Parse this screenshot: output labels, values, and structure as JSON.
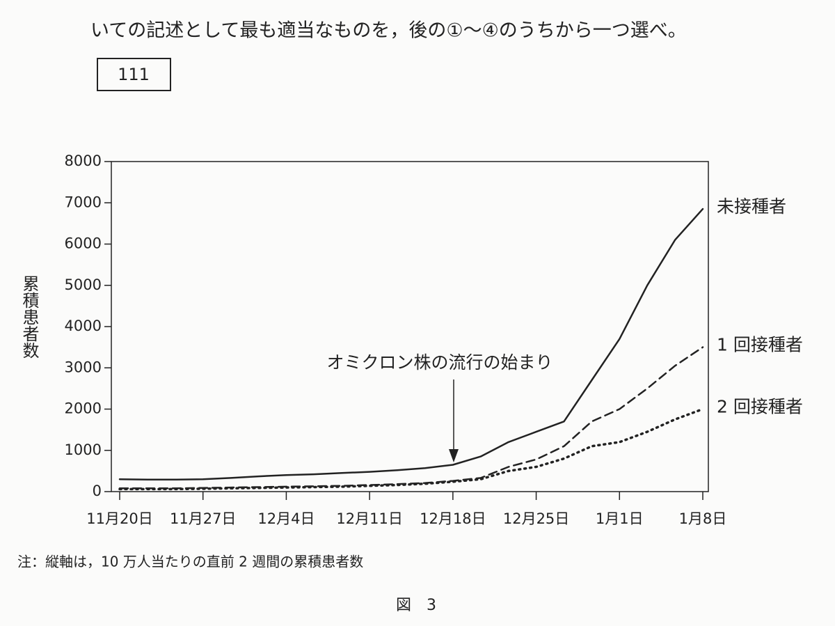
{
  "question_text": "いての記述として最も適当なものを，後の①～④のうちから一つ選べ。",
  "answer_box": "111",
  "chart_data": {
    "type": "line",
    "ylabel": "累積患者数",
    "annotation": "オミクロン株の流行の始まり",
    "categories": [
      "11月20日",
      null,
      null,
      "11月27日",
      null,
      null,
      "12月4日",
      null,
      null,
      "12月11日",
      null,
      null,
      "12月18日",
      null,
      null,
      "12月25日",
      null,
      null,
      "1月1日",
      null,
      null,
      "1月8日"
    ],
    "ylim": [
      0,
      8000
    ],
    "yticks": [
      0,
      1000,
      2000,
      3000,
      4000,
      5000,
      6000,
      7000,
      8000
    ],
    "grid": false,
    "series": [
      {
        "name": "未接種者",
        "color": "#222222",
        "style": "solid",
        "values": [
          300,
          290,
          290,
          300,
          330,
          370,
          400,
          420,
          450,
          480,
          520,
          570,
          650,
          850,
          1200,
          1450,
          1700,
          2700,
          3700,
          5000,
          6100,
          6850
        ]
      },
      {
        "name": "1 回接種者",
        "color": "#222222",
        "style": "dashed",
        "values": [
          80,
          80,
          80,
          90,
          100,
          110,
          120,
          130,
          140,
          160,
          180,
          210,
          260,
          330,
          600,
          780,
          1100,
          1700,
          2000,
          2500,
          3050,
          3500
        ]
      },
      {
        "name": "2 回接種者",
        "color": "#222222",
        "style": "dotted",
        "values": [
          60,
          60,
          60,
          70,
          80,
          90,
          100,
          110,
          120,
          140,
          160,
          190,
          240,
          300,
          500,
          600,
          800,
          1100,
          1200,
          1450,
          1750,
          2000
        ]
      }
    ]
  },
  "note": "注：縦軸は，10 万人当たりの直前 2 週間の累積患者数",
  "figure_caption": "図　3"
}
